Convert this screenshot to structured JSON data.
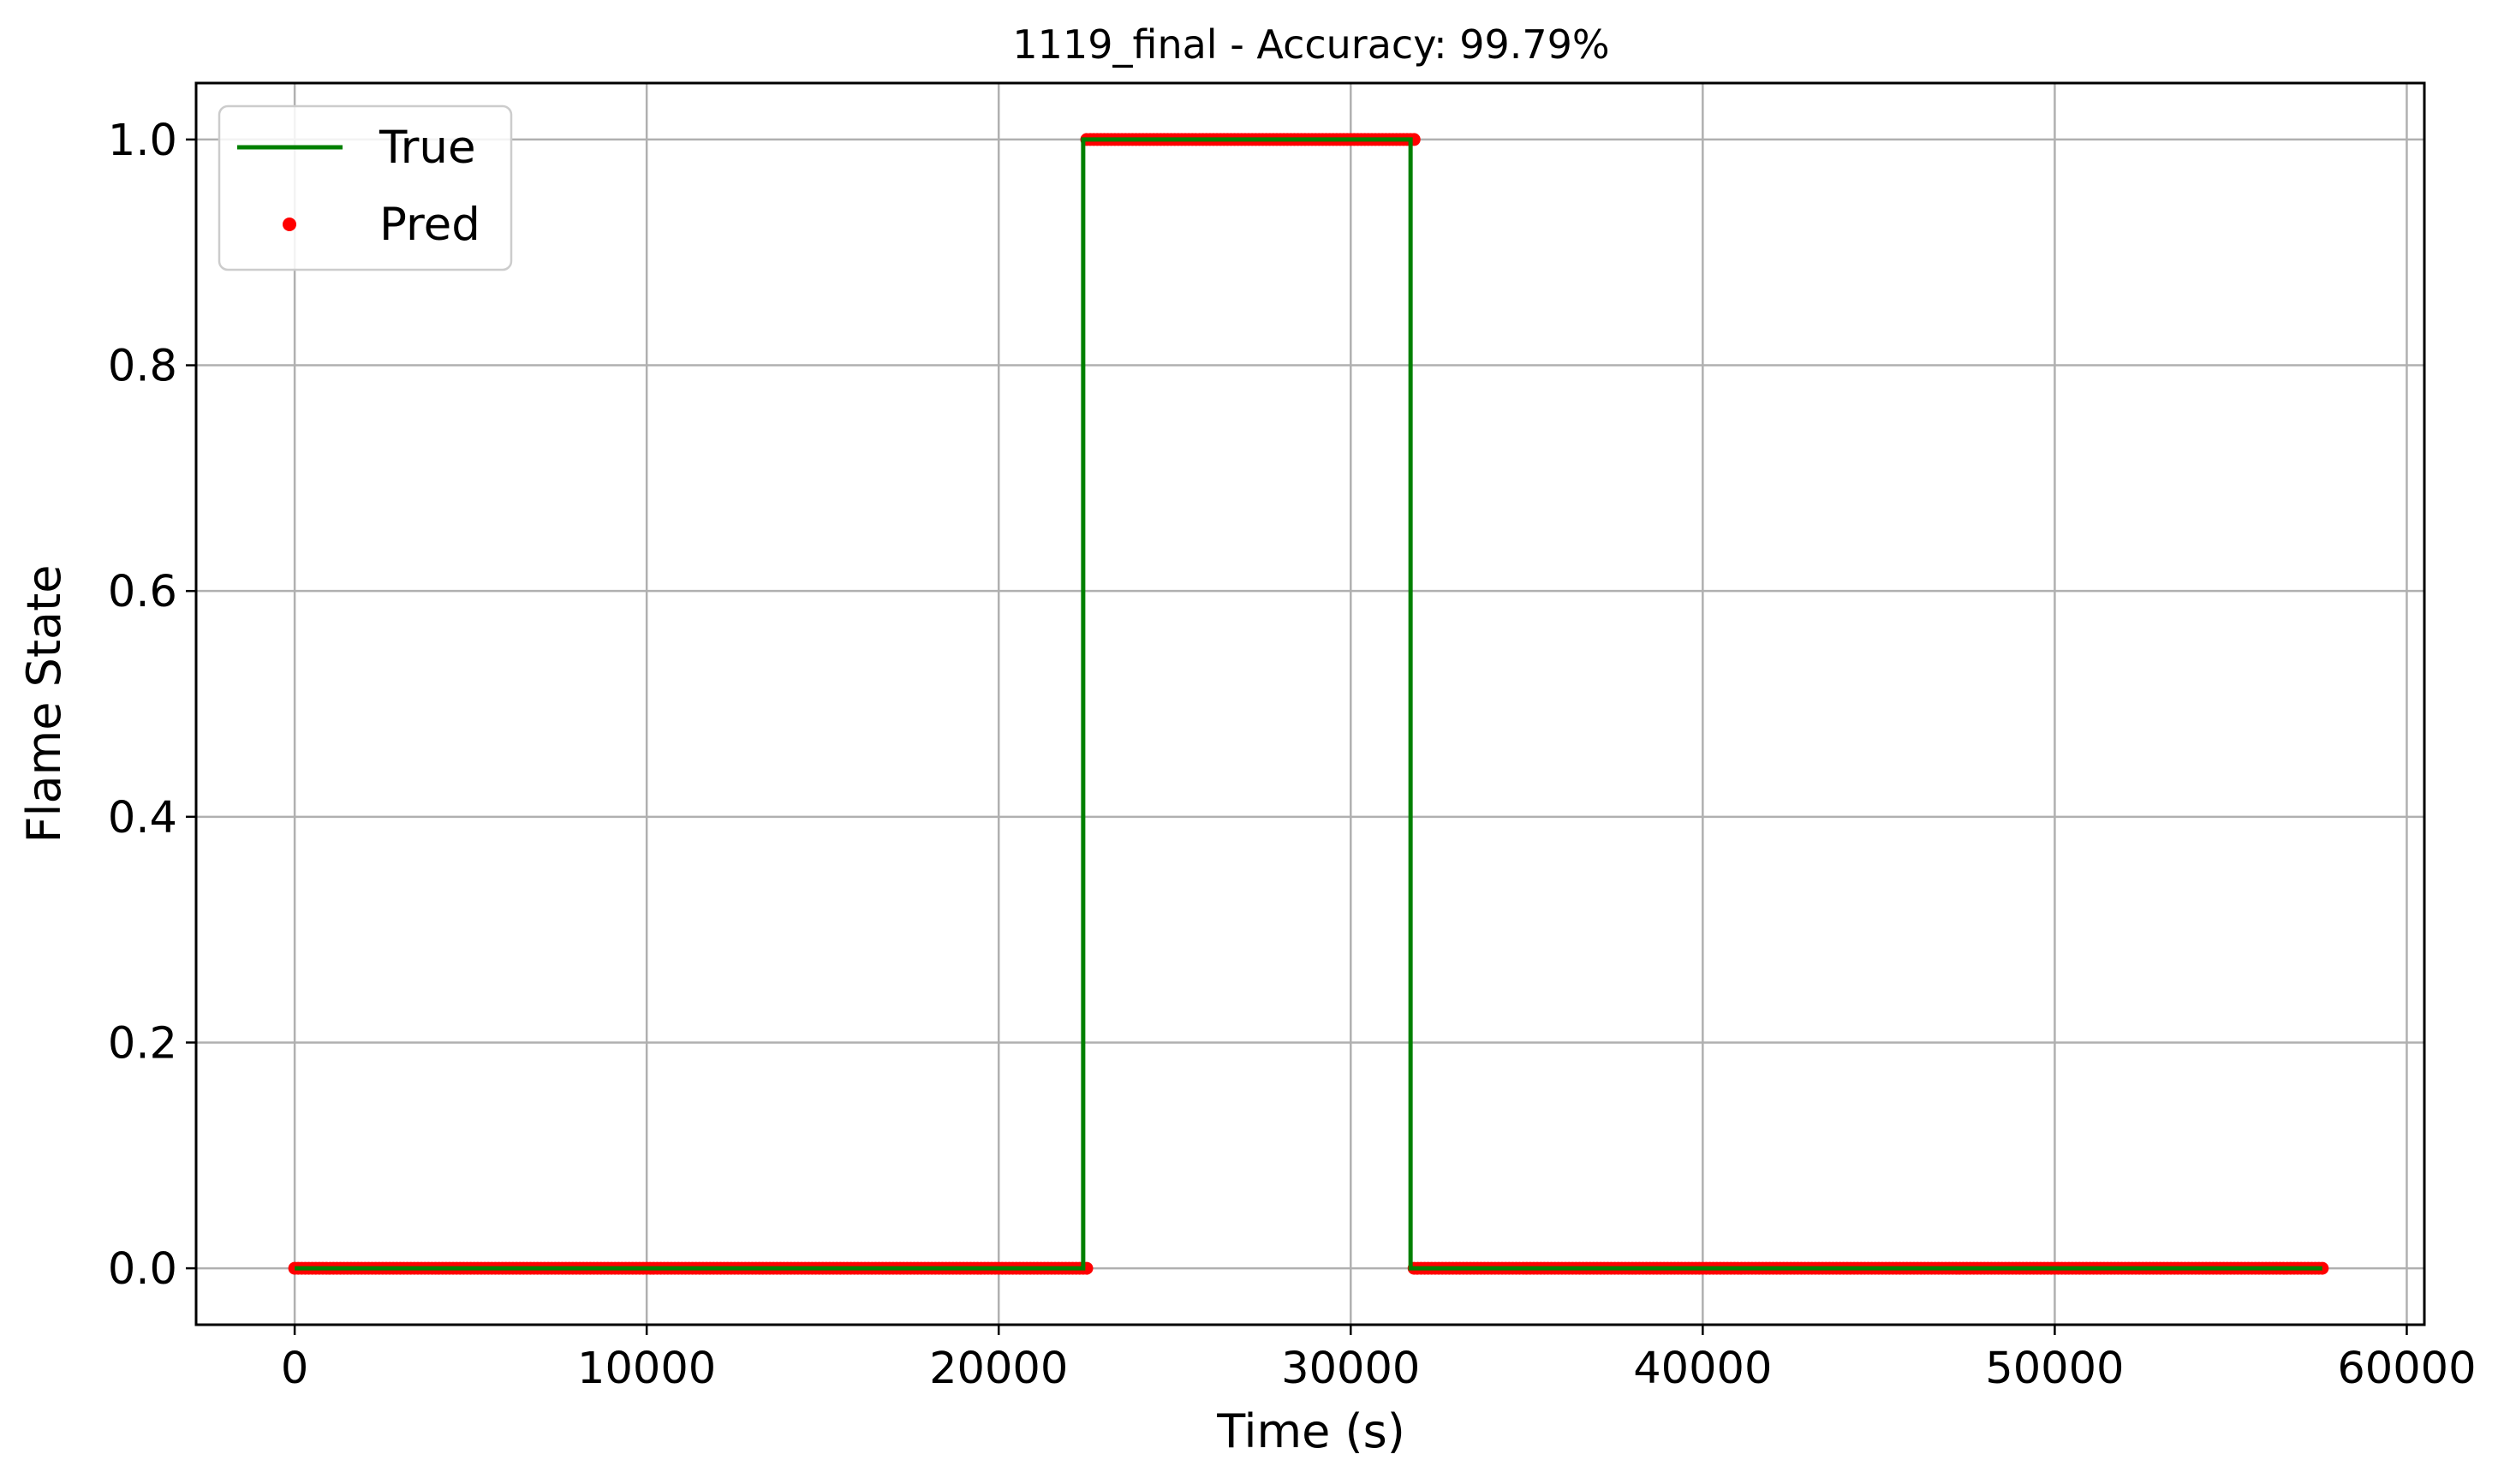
{
  "chart_data": {
    "type": "line",
    "title": "1119_final - Accuracy: 99.79%",
    "xlabel": "Time (s)",
    "ylabel": "Flame State",
    "xlim": [
      -2800,
      60500
    ],
    "ylim": [
      -0.05,
      1.05
    ],
    "xticks": [
      0,
      10000,
      20000,
      30000,
      40000,
      50000,
      60000
    ],
    "xtick_labels": [
      "0",
      "10000",
      "20000",
      "30000",
      "40000",
      "50000",
      "60000"
    ],
    "yticks": [
      0.0,
      0.2,
      0.4,
      0.6,
      0.8,
      1.0
    ],
    "ytick_labels": [
      "0.0",
      "0.2",
      "0.4",
      "0.6",
      "0.8",
      "1.0"
    ],
    "grid": true,
    "legend_position": "top-left",
    "series": [
      {
        "name": "True",
        "kind": "line",
        "color": "#008000",
        "x": [
          0,
          22400,
          22400,
          31700,
          31700,
          57600
        ],
        "y": [
          0,
          0,
          1,
          1,
          0,
          0
        ]
      },
      {
        "name": "Pred",
        "kind": "scatter",
        "color": "#ff0000",
        "segments": [
          {
            "x_start": 0,
            "x_end": 22500,
            "y": 0
          },
          {
            "x_start": 22500,
            "x_end": 31800,
            "y": 1
          },
          {
            "x_start": 31800,
            "x_end": 57600,
            "y": 0
          }
        ]
      }
    ]
  }
}
